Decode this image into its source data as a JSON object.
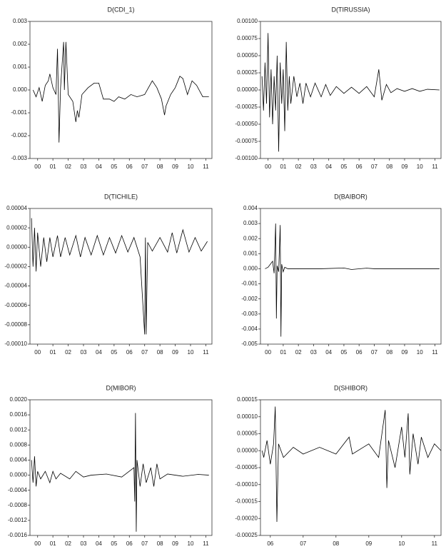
{
  "chart_data": [
    {
      "type": "line",
      "title": "D(CDI_1)",
      "color": "#000000",
      "xlim": [
        0,
        11.9
      ],
      "ylim": [
        -0.003,
        0.003
      ],
      "xticks": [
        {
          "value": 0.5,
          "label": "00"
        },
        {
          "value": 1.5,
          "label": "01"
        },
        {
          "value": 2.5,
          "label": "02"
        },
        {
          "value": 3.5,
          "label": "03"
        },
        {
          "value": 4.5,
          "label": "04"
        },
        {
          "value": 5.5,
          "label": "05"
        },
        {
          "value": 6.5,
          "label": "06"
        },
        {
          "value": 7.5,
          "label": "07"
        },
        {
          "value": 8.5,
          "label": "08"
        },
        {
          "value": 9.5,
          "label": "09"
        },
        {
          "value": 10.5,
          "label": "10"
        },
        {
          "value": 11.5,
          "label": "11"
        }
      ],
      "yticks": [
        0.003,
        0.002,
        0.001,
        {
          "value": 0,
          "label": "0.000"
        },
        -0.001,
        -0.002,
        -0.003
      ],
      "x": [
        0.2,
        0.4,
        0.6,
        0.8,
        1.0,
        1.2,
        1.3,
        1.5,
        1.7,
        1.8,
        1.85,
        1.9,
        2.0,
        2.2,
        2.25,
        2.35,
        2.5,
        2.8,
        3.0,
        3.1,
        3.2,
        3.4,
        3.8,
        4.2,
        4.5,
        4.8,
        5.2,
        5.5,
        5.8,
        6.2,
        6.6,
        7.0,
        7.5,
        8.0,
        8.3,
        8.6,
        8.8,
        8.9,
        9.2,
        9.5,
        9.8,
        10.0,
        10.3,
        10.6,
        10.9,
        11.3,
        11.7
      ],
      "values": [
        0,
        -0.0003,
        0.0001,
        -0.0005,
        0.0002,
        0.0004,
        0.0007,
        0.0001,
        -0.0002,
        0.0018,
        0,
        -0.0023,
        0.0001,
        0.0021,
        0,
        0.0021,
        -0.0002,
        -0.0005,
        -0.0014,
        -0.0009,
        -0.0012,
        -0.0002,
        0.0001,
        0.0003,
        0.0003,
        -0.0004,
        -0.0004,
        -0.0005,
        -0.0003,
        -0.0004,
        -0.0002,
        -0.0003,
        -0.0002,
        0.0004,
        0.0001,
        -0.0004,
        -0.0011,
        -0.0007,
        -0.0002,
        0.0001,
        0.0006,
        0.0005,
        -0.0002,
        0.0004,
        0.0002,
        -0.0003,
        -0.0003
      ]
    },
    {
      "type": "line",
      "title": "D(TIRUSSIA)",
      "color": "#000000",
      "xlim": [
        0,
        11.9
      ],
      "ylim": [
        -0.001,
        0.001
      ],
      "xticks": [
        {
          "value": 0.5,
          "label": "00"
        },
        {
          "value": 1.5,
          "label": "01"
        },
        {
          "value": 2.5,
          "label": "02"
        },
        {
          "value": 3.5,
          "label": "03"
        },
        {
          "value": 4.5,
          "label": "04"
        },
        {
          "value": 5.5,
          "label": "05"
        },
        {
          "value": 6.5,
          "label": "06"
        },
        {
          "value": 7.5,
          "label": "07"
        },
        {
          "value": 8.5,
          "label": "08"
        },
        {
          "value": 9.5,
          "label": "09"
        },
        {
          "value": 10.5,
          "label": "10"
        },
        {
          "value": 11.5,
          "label": "11"
        }
      ],
      "yticks": [
        {
          "value": 0.001,
          "label": "0.00100"
        },
        0.00075,
        {
          "value": 0.0005,
          "label": "0.00050"
        },
        0.00025,
        {
          "value": 0,
          "label": "0.00000"
        },
        -0.00025,
        {
          "value": -0.0005,
          "label": "-0.00050"
        },
        -0.00075,
        {
          "value": -0.001,
          "label": "-0.00100"
        }
      ],
      "x": [
        0.1,
        0.2,
        0.3,
        0.4,
        0.5,
        0.6,
        0.7,
        0.8,
        0.9,
        1.0,
        1.1,
        1.2,
        1.3,
        1.4,
        1.5,
        1.6,
        1.7,
        1.8,
        1.9,
        2.0,
        2.2,
        2.4,
        2.6,
        2.8,
        3.0,
        3.3,
        3.6,
        4.0,
        4.3,
        4.6,
        5.0,
        5.5,
        6.0,
        6.5,
        7.0,
        7.5,
        7.8,
        8.0,
        8.3,
        8.6,
        9.0,
        9.5,
        10.0,
        10.5,
        11.0,
        11.8
      ],
      "values": [
        0.0002,
        -0.0003,
        0.0004,
        -0.0002,
        0.00083,
        -0.0004,
        0.0003,
        -0.0005,
        0.0002,
        -0.0003,
        0.0005,
        -0.0009,
        0.0004,
        -0.0002,
        0.0003,
        -0.0006,
        0.0007,
        -0.0003,
        0.0002,
        -0.0002,
        0.0002,
        -0.0001,
        0.0001,
        -0.0002,
        0.0001,
        -0.0001,
        0.0001,
        -0.0001,
        8e-05,
        -8e-05,
        5e-05,
        -5e-05,
        4e-05,
        -5e-05,
        5e-05,
        -0.0001,
        0.0003,
        -0.00015,
        8e-05,
        -4e-05,
        2e-05,
        -2e-05,
        2e-05,
        -2e-05,
        1e-05,
        0
      ]
    },
    {
      "type": "line",
      "title": "D(TICHILE)",
      "color": "#000000",
      "xlim": [
        0,
        11.9
      ],
      "ylim": [
        -0.0001,
        4e-05
      ],
      "xticks": [
        {
          "value": 0.5,
          "label": "00"
        },
        {
          "value": 1.5,
          "label": "01"
        },
        {
          "value": 2.5,
          "label": "02"
        },
        {
          "value": 3.5,
          "label": "03"
        },
        {
          "value": 4.5,
          "label": "04"
        },
        {
          "value": 5.5,
          "label": "05"
        },
        {
          "value": 6.5,
          "label": "06"
        },
        {
          "value": 7.5,
          "label": "07"
        },
        {
          "value": 8.5,
          "label": "08"
        },
        {
          "value": 9.5,
          "label": "09"
        },
        {
          "value": 10.5,
          "label": "10"
        },
        {
          "value": 11.5,
          "label": "11"
        }
      ],
      "yticks": [
        4e-05,
        2e-05,
        {
          "value": 0,
          "label": "0.00000"
        },
        -2e-05,
        -4e-05,
        -6e-05,
        -8e-05,
        {
          "value": -0.0001,
          "label": "-0.00010"
        }
      ],
      "x": [
        0.1,
        0.2,
        0.3,
        0.4,
        0.5,
        0.7,
        0.9,
        1.1,
        1.3,
        1.5,
        1.8,
        2.0,
        2.3,
        2.6,
        3.0,
        3.3,
        3.6,
        4.0,
        4.4,
        4.8,
        5.2,
        5.6,
        6.0,
        6.4,
        6.8,
        7.2,
        7.5,
        7.55,
        7.6,
        7.7,
        8.0,
        8.5,
        9.0,
        9.3,
        9.6,
        10.0,
        10.4,
        10.8,
        11.2,
        11.6
      ],
      "values": [
        3e-05,
        -2e-05,
        2e-05,
        -2.5e-05,
        1.5e-05,
        -2e-05,
        1e-05,
        -1.5e-05,
        1e-05,
        -1e-05,
        1.2e-05,
        -1e-05,
        1e-05,
        -8e-06,
        1.2e-05,
        -1e-05,
        1e-05,
        -8e-06,
        1.2e-05,
        -8e-06,
        1e-05,
        -6e-06,
        1.2e-05,
        -5e-06,
        1e-05,
        -1e-05,
        -9e-05,
        1e-05,
        -9e-05,
        5e-06,
        -4e-06,
        1e-05,
        -5e-06,
        1.5e-05,
        -6e-06,
        1.8e-05,
        -5e-06,
        1e-05,
        -4e-06,
        6e-06
      ]
    },
    {
      "type": "line",
      "title": "D(BAIBOR)",
      "color": "#000000",
      "xlim": [
        0,
        11.9
      ],
      "ylim": [
        -0.005,
        0.004
      ],
      "xticks": [
        {
          "value": 0.5,
          "label": "00"
        },
        {
          "value": 1.5,
          "label": "01"
        },
        {
          "value": 2.5,
          "label": "02"
        },
        {
          "value": 3.5,
          "label": "03"
        },
        {
          "value": 4.5,
          "label": "04"
        },
        {
          "value": 5.5,
          "label": "05"
        },
        {
          "value": 6.5,
          "label": "06"
        },
        {
          "value": 7.5,
          "label": "07"
        },
        {
          "value": 8.5,
          "label": "08"
        },
        {
          "value": 9.5,
          "label": "09"
        },
        {
          "value": 10.5,
          "label": "10"
        },
        {
          "value": 11.5,
          "label": "11"
        }
      ],
      "yticks": [
        0.004,
        0.003,
        0.002,
        0.001,
        {
          "value": 0,
          "label": "0.000"
        },
        -0.001,
        -0.002,
        -0.003,
        -0.004,
        -0.005
      ],
      "x": [
        0.3,
        0.5,
        0.8,
        0.9,
        1.0,
        1.05,
        1.1,
        1.2,
        1.3,
        1.35,
        1.4,
        1.5,
        1.6,
        1.8,
        2.5,
        4.0,
        5.5,
        6.0,
        7.0,
        7.5,
        9.0,
        11.8
      ],
      "values": [
        0,
        0.0001,
        0.0005,
        -0.0003,
        0.003,
        -0.0033,
        0.0002,
        -0.0002,
        0.0029,
        -0.0045,
        0.0003,
        -0.0002,
        0.0001,
        0,
        0,
        0,
        5e-05,
        -5e-05,
        4e-05,
        0,
        0,
        0
      ]
    },
    {
      "type": "line",
      "title": "D(MIBOR)",
      "color": "#000000",
      "xlim": [
        0,
        11.9
      ],
      "ylim": [
        -0.0016,
        0.002
      ],
      "xticks": [
        {
          "value": 0.5,
          "label": "00"
        },
        {
          "value": 1.5,
          "label": "01"
        },
        {
          "value": 2.5,
          "label": "02"
        },
        {
          "value": 3.5,
          "label": "03"
        },
        {
          "value": 4.5,
          "label": "04"
        },
        {
          "value": 5.5,
          "label": "05"
        },
        {
          "value": 6.5,
          "label": "06"
        },
        {
          "value": 7.5,
          "label": "07"
        },
        {
          "value": 8.5,
          "label": "08"
        },
        {
          "value": 9.5,
          "label": "09"
        },
        {
          "value": 10.5,
          "label": "10"
        },
        {
          "value": 11.5,
          "label": "11"
        }
      ],
      "yticks": [
        {
          "value": 0.002,
          "label": "0.0020"
        },
        0.0016,
        0.0012,
        0.0008,
        0.0004,
        {
          "value": 0,
          "label": "0.0000"
        },
        -0.0004,
        -0.0008,
        -0.0012,
        -0.0016
      ],
      "x": [
        0.1,
        0.2,
        0.3,
        0.4,
        0.5,
        0.7,
        1.0,
        1.3,
        1.5,
        1.7,
        2.0,
        2.6,
        3.0,
        3.5,
        4.0,
        5.0,
        6.0,
        6.8,
        6.85,
        6.9,
        6.95,
        7.0,
        7.2,
        7.4,
        7.6,
        7.9,
        8.1,
        8.3,
        8.5,
        9.0,
        10.0,
        11.0,
        11.7
      ],
      "values": [
        0.0004,
        -0.0002,
        0.0005,
        -0.0003,
        0.0001,
        -0.0001,
        0.0001,
        -0.0002,
        0.0001,
        -0.0001,
        5e-05,
        -0.0001,
        0.0001,
        -5e-05,
        0,
        3e-05,
        -5e-05,
        0.0002,
        -0.0007,
        0.00165,
        -0.0015,
        0.0004,
        -0.0003,
        0.0003,
        -0.0002,
        0.0002,
        -0.0003,
        0.0003,
        -0.0001,
        3e-05,
        -3e-05,
        2e-05,
        0
      ]
    },
    {
      "type": "line",
      "title": "D(SHIBOR)",
      "color": "#000000",
      "xlim": [
        6.2,
        11.7
      ],
      "ylim": [
        -0.00025,
        0.00015
      ],
      "xticks": [
        {
          "value": 6.5,
          "label": "06"
        },
        {
          "value": 7.5,
          "label": "07"
        },
        {
          "value": 8.5,
          "label": "08"
        },
        {
          "value": 9.5,
          "label": "09"
        },
        {
          "value": 10.5,
          "label": "10"
        },
        {
          "value": 11.5,
          "label": "11"
        }
      ],
      "yticks": [
        0.00015,
        {
          "value": 0.0001,
          "label": "0.00010"
        },
        5e-05,
        {
          "value": 0,
          "label": "0.00000"
        },
        -5e-05,
        {
          "value": -0.0001,
          "label": "-0.00010"
        },
        -0.00015,
        {
          "value": -0.0002,
          "label": "-0.00020"
        },
        -0.00025
      ],
      "x": [
        6.25,
        6.3,
        6.4,
        6.5,
        6.6,
        6.65,
        6.7,
        6.75,
        6.9,
        7.2,
        7.5,
        8.0,
        8.5,
        8.9,
        9.0,
        9.5,
        9.8,
        10.0,
        10.05,
        10.1,
        10.3,
        10.5,
        10.6,
        10.7,
        10.75,
        10.85,
        11.0,
        11.1,
        11.3,
        11.5,
        11.7
      ],
      "values": [
        0,
        -2e-05,
        3e-05,
        -4e-05,
        2e-05,
        0.00013,
        -0.00021,
        2e-05,
        -2e-05,
        1e-05,
        -1e-05,
        1e-05,
        -1e-05,
        4e-05,
        -1e-05,
        2e-05,
        -2e-05,
        0.00012,
        -0.00011,
        3e-05,
        -5e-05,
        7e-05,
        -2e-05,
        0.00011,
        -7e-05,
        5e-05,
        -4e-05,
        4e-05,
        -2e-05,
        2e-05,
        0
      ]
    }
  ]
}
